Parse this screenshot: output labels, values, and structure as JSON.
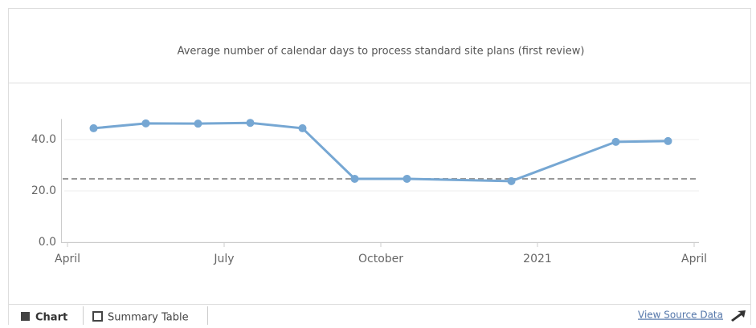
{
  "chart_data": {
    "type": "line",
    "title": "Average number of calendar days to process standard site plans (first review)",
    "x": [
      "2020-04",
      "2020-05",
      "2020-06",
      "2020-07",
      "2020-08",
      "2020-09",
      "2020-10",
      "2020-12",
      "2021-02",
      "2021-03"
    ],
    "series": [
      {
        "color": "#76a7d3",
        "values": [
          44.4,
          46.3,
          46.2,
          46.5,
          44.4,
          24.7,
          24.7,
          23.8,
          39.1,
          39.4
        ]
      }
    ],
    "reference_line": 24.7,
    "xlim": [
      "2020-04",
      "2021-04"
    ],
    "xticks": [
      {
        "value": "2020-04",
        "label": "April"
      },
      {
        "value": "2020-07",
        "label": "July"
      },
      {
        "value": "2020-10",
        "label": "October"
      },
      {
        "value": "2021-01",
        "label": "2021"
      },
      {
        "value": "2021-04",
        "label": "April"
      }
    ],
    "ylim": [
      0,
      48
    ],
    "yticks": [
      {
        "value": 0,
        "label": "0.0"
      },
      {
        "value": 20,
        "label": "20.0"
      },
      {
        "value": 40,
        "label": "40.0"
      }
    ],
    "grid": true
  },
  "tabs": [
    "Chart",
    "Summary Table"
  ],
  "source_link": "View Source Data"
}
